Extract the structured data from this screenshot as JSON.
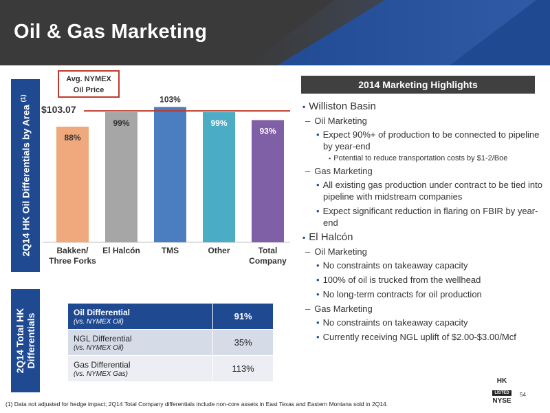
{
  "header": {
    "title": "Oil & Gas Marketing"
  },
  "side_labels": {
    "top": "2Q14 HK Oil Differentials by Area",
    "top_sup": "(1)",
    "bottom_line1": "2Q14 Total HK",
    "bottom_line2": "Differentials"
  },
  "nymex": {
    "label_line1": "Avg. NYMEX",
    "label_line2": "Oil Price",
    "price": "$103.07"
  },
  "chart_data": {
    "type": "bar",
    "categories": [
      "Bakken/ Three Forks",
      "El Halcón",
      "TMS",
      "Other",
      "Total Company"
    ],
    "category_lines": [
      [
        "Bakken/",
        "Three Forks"
      ],
      [
        "El Halcón"
      ],
      [
        "TMS"
      ],
      [
        "Other"
      ],
      [
        "Total",
        "Company"
      ]
    ],
    "values": [
      88,
      99,
      103,
      99,
      93
    ],
    "labels": [
      "88%",
      "99%",
      "103%",
      "99%",
      "93%"
    ],
    "colors": [
      "#f0a97c",
      "#a6a6a6",
      "#4a7ec0",
      "#4bacc6",
      "#7f5fa5"
    ],
    "label_colors": [
      "#333333",
      "#333333",
      "#333333",
      "#ffffff",
      "#ffffff"
    ],
    "label_inside": [
      true,
      true,
      false,
      true,
      true
    ],
    "reference_line": 100,
    "reference_color": "#c0392b",
    "ylim": [
      0,
      110
    ]
  },
  "highlights": {
    "title": "2014 Marketing Highlights",
    "williston": "Williston Basin",
    "oil_marketing": "Oil Marketing",
    "w_oil_b1": "Expect 90%+ of production to be connected to pipeline by year-end",
    "w_oil_b1_sub": "Potential to reduce transportation costs by $1-2/Boe",
    "gas_marketing": "Gas Marketing",
    "w_gas_b1": "All existing gas production under contract to be tied into pipeline with midstream companies",
    "w_gas_b2": "Expect significant reduction in flaring on FBIR by year-end",
    "elhalcon": "El Halcón",
    "e_oil_b1": "No constraints on takeaway capacity",
    "e_oil_b2": "100% of oil is trucked from the wellhead",
    "e_oil_b3": "No long-term contracts for oil production",
    "e_gas_b1": "No constraints on takeaway capacity",
    "e_gas_b2": "Currently receiving NGL uplift of $2.00-$3.00/Mcf"
  },
  "differentials": [
    {
      "label": "Oil Differential",
      "sub": "(vs. NYMEX Oil)",
      "value": "91%"
    },
    {
      "label": "NGL Differential",
      "sub": "(vs. NYMEX Oil)",
      "value": "35%"
    },
    {
      "label": "Gas Differential",
      "sub": "(vs. NYMEX Gas)",
      "value": "113%"
    }
  ],
  "footnote": "(1) Data not adjusted for hedge impact; 2Q14 Total Company differentials include non-core assets in East Texas and Eastern Montana sold in 2Q14.",
  "page_number": "54",
  "logo": {
    "hk": "HK",
    "listed": "LISTED",
    "nyse": "NYSE"
  }
}
